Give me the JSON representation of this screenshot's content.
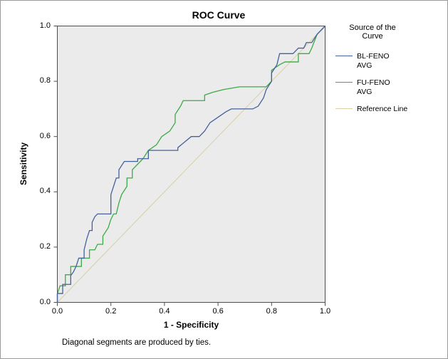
{
  "title": "ROC Curve",
  "axes": {
    "x_label": "1 - Specificity",
    "y_label": "Sensitivity",
    "x_ticks": [
      "0.0",
      "0.2",
      "0.4",
      "0.6",
      "0.8",
      "1.0"
    ],
    "y_ticks": [
      "0.0",
      "0.2",
      "0.4",
      "0.6",
      "0.8",
      "1.0"
    ]
  },
  "legend": {
    "title": "Source of the Curve",
    "items": [
      {
        "label": "BL-FENO\nAVG",
        "color": "#45619d"
      },
      {
        "label": "FU-FENO\nAVG",
        "color": "#3caa47"
      },
      {
        "label": "Reference Line",
        "color": "#d8cfa4"
      }
    ]
  },
  "footnote": "Diagonal segments are produced by ties.",
  "colors": {
    "plot_bg": "#ebebeb",
    "border": "#4d4d4d",
    "blue_series": "#45619d",
    "green_series": "#3caa47",
    "reference": "#d8cfa4"
  },
  "chart_data": {
    "type": "line",
    "title": "ROC Curve",
    "xlabel": "1 - Specificity",
    "ylabel": "Sensitivity",
    "xlim": [
      0,
      1
    ],
    "ylim": [
      0,
      1
    ],
    "grid": false,
    "legend_position": "right",
    "legend_title": "Source of the Curve",
    "footnote": "Diagonal segments are produced by ties.",
    "series": [
      {
        "name": "BL-FENO AVG",
        "color": "#45619d",
        "width": 1.3,
        "points": [
          [
            0,
            0
          ],
          [
            0,
            0.032
          ],
          [
            0.02,
            0.032
          ],
          [
            0.02,
            0.065
          ],
          [
            0.05,
            0.065
          ],
          [
            0.05,
            0.097
          ],
          [
            0.06,
            0.11
          ],
          [
            0.07,
            0.13
          ],
          [
            0.08,
            0.16
          ],
          [
            0.1,
            0.16
          ],
          [
            0.1,
            0.19
          ],
          [
            0.11,
            0.23
          ],
          [
            0.12,
            0.26
          ],
          [
            0.13,
            0.26
          ],
          [
            0.13,
            0.29
          ],
          [
            0.14,
            0.31
          ],
          [
            0.15,
            0.32
          ],
          [
            0.2,
            0.32
          ],
          [
            0.2,
            0.39
          ],
          [
            0.21,
            0.42
          ],
          [
            0.22,
            0.45
          ],
          [
            0.23,
            0.45
          ],
          [
            0.23,
            0.48
          ],
          [
            0.25,
            0.51
          ],
          [
            0.3,
            0.51
          ],
          [
            0.3,
            0.52
          ],
          [
            0.34,
            0.52
          ],
          [
            0.34,
            0.55
          ],
          [
            0.45,
            0.55
          ],
          [
            0.45,
            0.56
          ],
          [
            0.5,
            0.6
          ],
          [
            0.53,
            0.6
          ],
          [
            0.55,
            0.62
          ],
          [
            0.57,
            0.65
          ],
          [
            0.6,
            0.67
          ],
          [
            0.63,
            0.69
          ],
          [
            0.65,
            0.7
          ],
          [
            0.73,
            0.7
          ],
          [
            0.75,
            0.71
          ],
          [
            0.77,
            0.74
          ],
          [
            0.78,
            0.77
          ],
          [
            0.8,
            0.8
          ],
          [
            0.8,
            0.83
          ],
          [
            0.82,
            0.86
          ],
          [
            0.83,
            0.9
          ],
          [
            0.88,
            0.9
          ],
          [
            0.9,
            0.92
          ],
          [
            0.92,
            0.92
          ],
          [
            0.93,
            0.94
          ],
          [
            0.95,
            0.94
          ],
          [
            0.97,
            0.97
          ],
          [
            1,
            1
          ]
        ]
      },
      {
        "name": "FU-FENO AVG",
        "color": "#3caa47",
        "width": 1.3,
        "points": [
          [
            0,
            0
          ],
          [
            0,
            0.03
          ],
          [
            0.01,
            0.06
          ],
          [
            0.03,
            0.06
          ],
          [
            0.03,
            0.1
          ],
          [
            0.05,
            0.1
          ],
          [
            0.05,
            0.13
          ],
          [
            0.09,
            0.13
          ],
          [
            0.09,
            0.16
          ],
          [
            0.12,
            0.16
          ],
          [
            0.12,
            0.19
          ],
          [
            0.14,
            0.19
          ],
          [
            0.15,
            0.21
          ],
          [
            0.17,
            0.21
          ],
          [
            0.17,
            0.24
          ],
          [
            0.19,
            0.27
          ],
          [
            0.2,
            0.3
          ],
          [
            0.21,
            0.32
          ],
          [
            0.22,
            0.32
          ],
          [
            0.23,
            0.36
          ],
          [
            0.24,
            0.39
          ],
          [
            0.26,
            0.42
          ],
          [
            0.26,
            0.45
          ],
          [
            0.28,
            0.45
          ],
          [
            0.28,
            0.48
          ],
          [
            0.3,
            0.5
          ],
          [
            0.32,
            0.52
          ],
          [
            0.34,
            0.55
          ],
          [
            0.37,
            0.57
          ],
          [
            0.39,
            0.6
          ],
          [
            0.42,
            0.62
          ],
          [
            0.44,
            0.65
          ],
          [
            0.44,
            0.68
          ],
          [
            0.46,
            0.71
          ],
          [
            0.47,
            0.73
          ],
          [
            0.55,
            0.73
          ],
          [
            0.55,
            0.75
          ],
          [
            0.58,
            0.76
          ],
          [
            0.62,
            0.77
          ],
          [
            0.68,
            0.78
          ],
          [
            0.78,
            0.78
          ],
          [
            0.8,
            0.8
          ],
          [
            0.8,
            0.84
          ],
          [
            0.83,
            0.86
          ],
          [
            0.85,
            0.87
          ],
          [
            0.9,
            0.87
          ],
          [
            0.9,
            0.9
          ],
          [
            0.94,
            0.9
          ],
          [
            0.95,
            0.92
          ],
          [
            0.97,
            0.97
          ],
          [
            1,
            1
          ]
        ]
      },
      {
        "name": "Reference Line",
        "color": "#d8cfa4",
        "width": 1,
        "points": [
          [
            0,
            0
          ],
          [
            1,
            1
          ]
        ]
      }
    ]
  }
}
